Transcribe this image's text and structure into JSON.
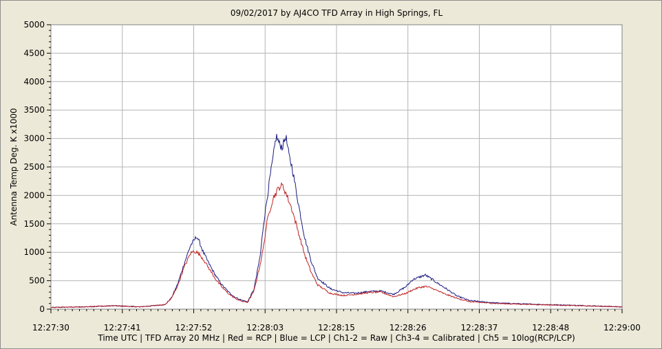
{
  "chart_data": {
    "type": "line",
    "title": "09/02/2017  by  AJ4CO TFD Array  in  High Springs, FL",
    "xlabel": "Time UTC | TFD Array 20 MHz | Red = RCP | Blue = LCP | Ch1-2 = Raw | Ch3-4 = Calibrated | Ch5 = 10log(RCP/LCP)",
    "ylabel": "Antenna Temp Deg. K x1000",
    "x_tick_labels": [
      "12:27:30",
      "12:27:41",
      "12:27:52",
      "12:28:03",
      "12:28:15",
      "12:28:26",
      "12:28:37",
      "12:28:48",
      "12:29:00"
    ],
    "y_tick_labels": [
      "0",
      "500",
      "1000",
      "1500",
      "2000",
      "2500",
      "3000",
      "3500",
      "4000",
      "4500",
      "5000"
    ],
    "ylim": [
      0,
      5000
    ],
    "xlim_seconds": [
      0,
      90
    ],
    "grid": true,
    "series": [
      {
        "name": "LCP",
        "color": "#1a1a80",
        "x": [
          0,
          5,
          10,
          14,
          18,
          19,
          20,
          21,
          22,
          22.5,
          23,
          23.5,
          24,
          25,
          26,
          27,
          28,
          29,
          30,
          31,
          32,
          33,
          33.5,
          34,
          34.5,
          35,
          35.5,
          36,
          36.5,
          37,
          37.5,
          38,
          39,
          40,
          41,
          42,
          44,
          46,
          48,
          50,
          52,
          54,
          56,
          57,
          58,
          59,
          60,
          61,
          62,
          64,
          66,
          70,
          75,
          80,
          85,
          90
        ],
        "values": [
          30,
          40,
          60,
          40,
          80,
          200,
          450,
          800,
          1120,
          1200,
          1280,
          1150,
          1000,
          780,
          580,
          420,
          300,
          210,
          160,
          130,
          350,
          950,
          1500,
          1900,
          2300,
          2650,
          3050,
          2900,
          2850,
          3050,
          2700,
          2500,
          1850,
          1250,
          850,
          550,
          360,
          290,
          280,
          310,
          320,
          260,
          400,
          520,
          560,
          600,
          530,
          450,
          380,
          230,
          150,
          110,
          90,
          75,
          60,
          40
        ]
      },
      {
        "name": "RCP",
        "color": "#c02020",
        "x": [
          0,
          5,
          10,
          14,
          18,
          19,
          20,
          21,
          22,
          22.5,
          23,
          23.5,
          24,
          25,
          26,
          27,
          28,
          29,
          30,
          31,
          32,
          33,
          33.5,
          34,
          34.5,
          35,
          35.5,
          36,
          36.5,
          37,
          37.5,
          38,
          39,
          40,
          41,
          42,
          44,
          46,
          48,
          50,
          52,
          54,
          56,
          57,
          58,
          59,
          60,
          61,
          62,
          64,
          66,
          70,
          75,
          80,
          85,
          90
        ],
        "values": [
          30,
          40,
          60,
          40,
          80,
          190,
          420,
          740,
          980,
          1020,
          1000,
          950,
          880,
          700,
          520,
          380,
          270,
          190,
          140,
          120,
          320,
          800,
          1100,
          1500,
          1750,
          1950,
          2050,
          2150,
          2170,
          2050,
          1900,
          1750,
          1350,
          950,
          650,
          430,
          280,
          240,
          260,
          290,
          300,
          220,
          280,
          340,
          380,
          400,
          370,
          320,
          270,
          190,
          130,
          100,
          85,
          70,
          55,
          40
        ]
      }
    ]
  }
}
